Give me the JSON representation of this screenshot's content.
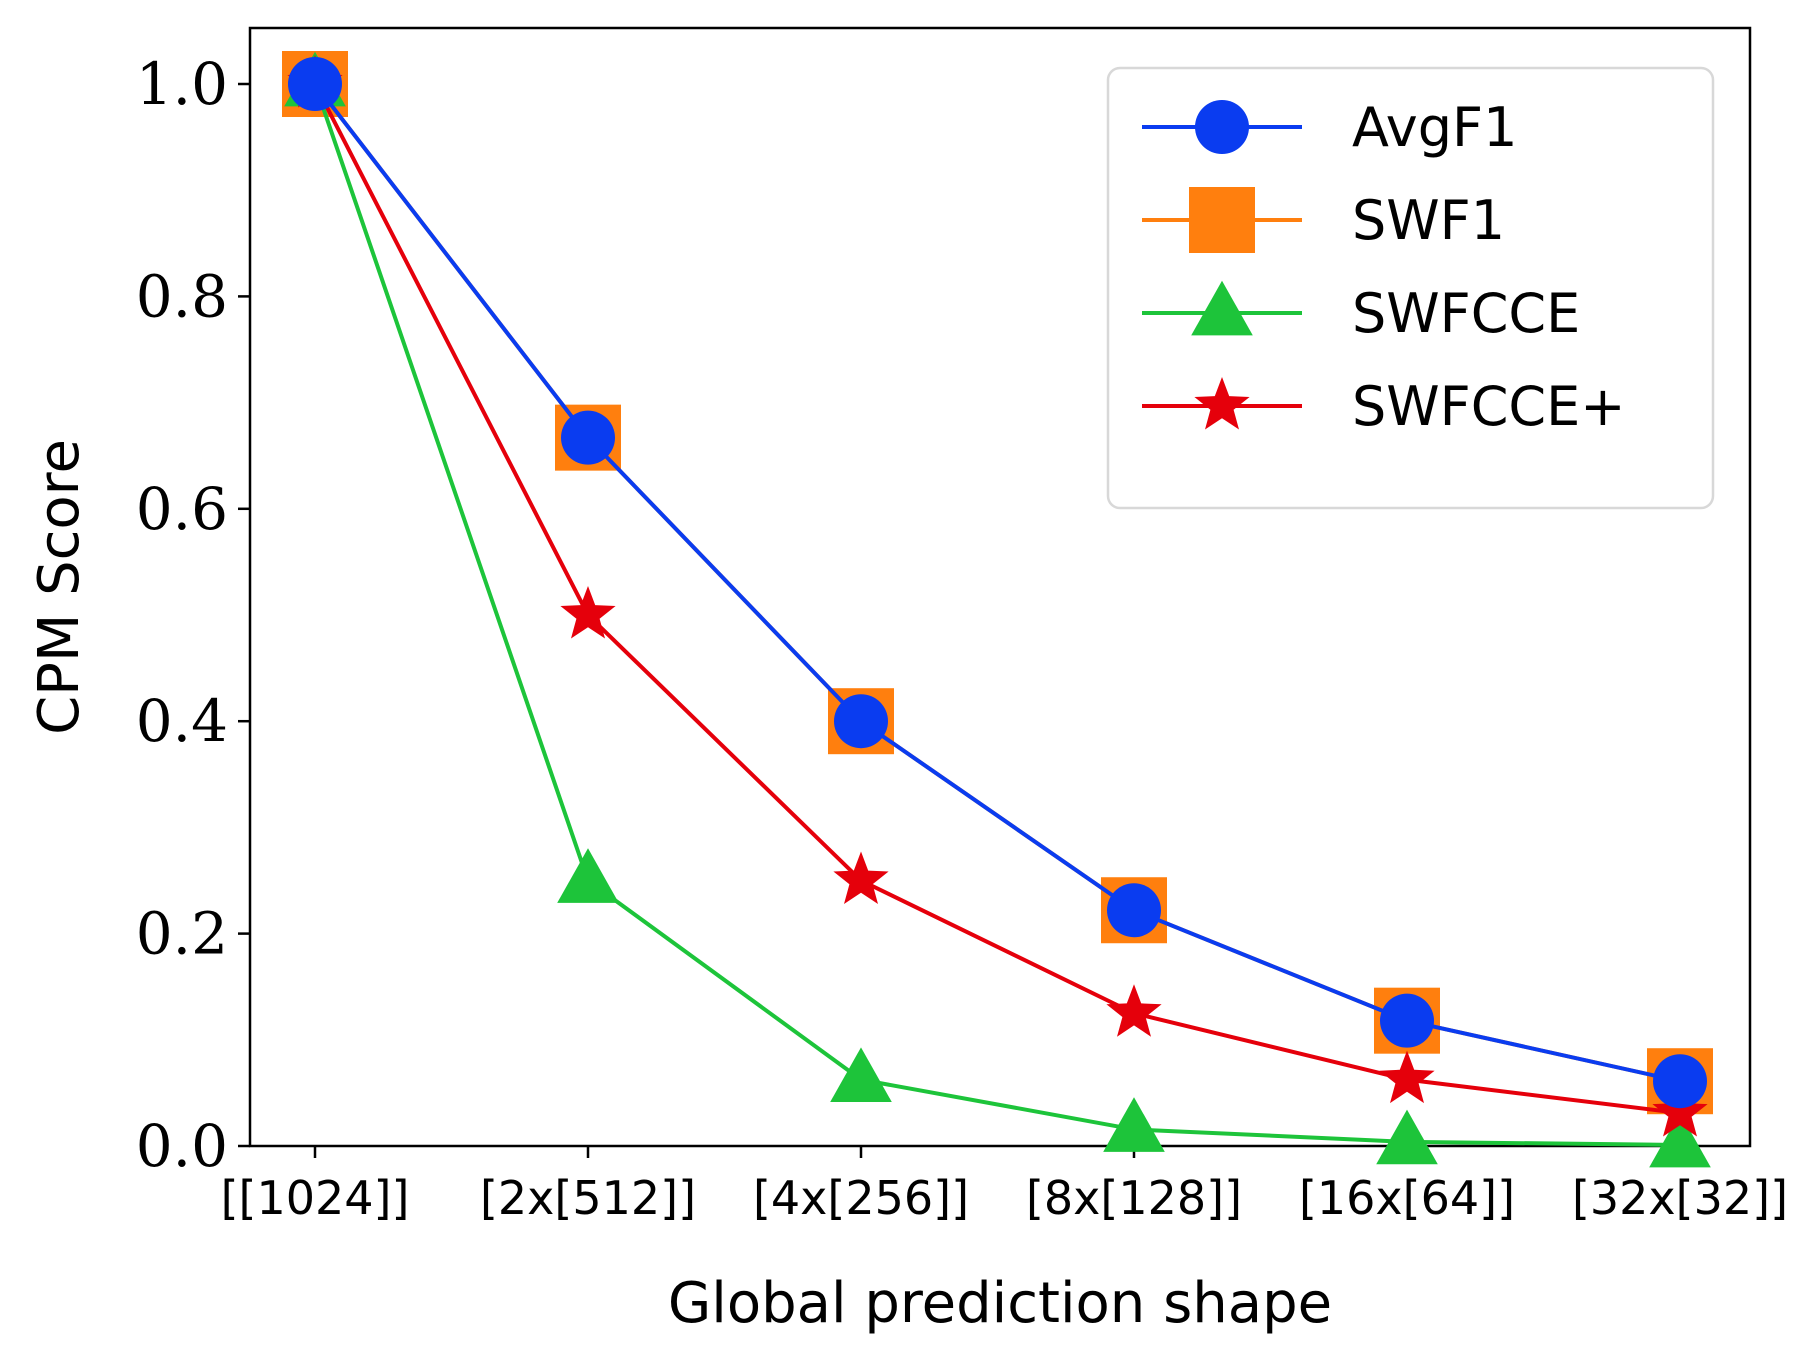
{
  "chart_data": {
    "type": "line",
    "title": "",
    "xlabel": "Global prediction shape",
    "ylabel": "CPM Score",
    "categories": [
      "[[1024]]",
      "[2x[512]]",
      "[4x[256]]",
      "[8x[128]]",
      "[16x[64]]",
      "[32x[32]]"
    ],
    "ylim": [
      0.0,
      1.05
    ],
    "yticks": [
      "0.0",
      "0.2",
      "0.4",
      "0.6",
      "0.8",
      "1.0"
    ],
    "legend_position": "top-right",
    "grid": false,
    "series": [
      {
        "name": "AvgF1",
        "values": [
          1.0,
          0.667,
          0.4,
          0.222,
          0.118,
          0.061
        ],
        "color": "#0a3cf0",
        "marker": "circle"
      },
      {
        "name": "SWF1",
        "values": [
          1.0,
          0.667,
          0.4,
          0.222,
          0.118,
          0.061
        ],
        "color": "#ff7f0e",
        "marker": "square"
      },
      {
        "name": "SWFCCE",
        "values": [
          1.0,
          0.25,
          0.0625,
          0.0156,
          0.0039,
          0.001
        ],
        "color": "#1dc43a",
        "marker": "triangle"
      },
      {
        "name": "SWFCCE+",
        "values": [
          1.0,
          0.5,
          0.25,
          0.125,
          0.0625,
          0.031
        ],
        "color": "#e5000b",
        "marker": "star"
      }
    ]
  }
}
